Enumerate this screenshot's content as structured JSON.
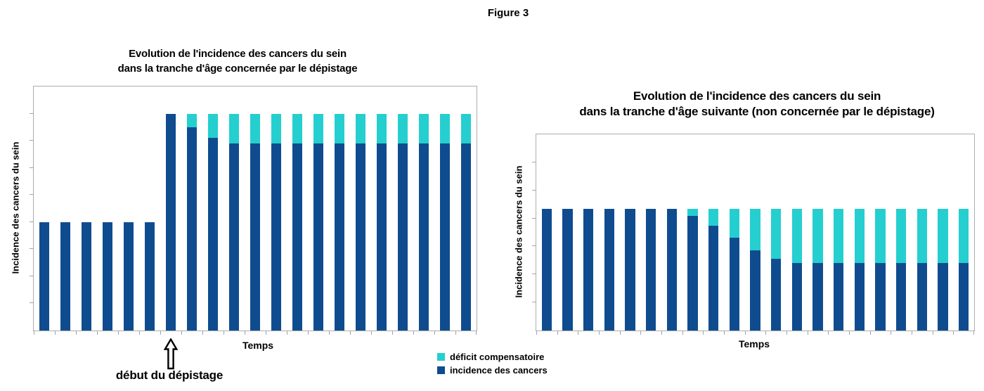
{
  "figure_label": "Figure 3",
  "colors": {
    "incidence": "#0F4C8F",
    "deficit": "#25CFCF",
    "axis": "#adadad"
  },
  "legend": {
    "items": [
      {
        "label": "déficit compensatoire",
        "color": "#25CFCF"
      },
      {
        "label": "incidence des cancers",
        "color": "#0F4C8F"
      }
    ]
  },
  "annotation": {
    "label": "début du dépistage",
    "arrow": "up-block-arrow",
    "at_bar_index": 7
  },
  "chart_data": [
    {
      "type": "bar",
      "stacked": true,
      "title": "Evolution de l'incidence des cancers du sein\ndans la tranche d'âge concernée par le dépistage",
      "xlabel": "Temps",
      "ylabel": "Incidence des cancers du sein",
      "ylim": [
        0,
        9
      ],
      "ytick_interval": 1,
      "x_tick_labels": "hidden",
      "grid": false,
      "legend_position": "shared-bottom-center",
      "categories": [
        1,
        2,
        3,
        4,
        5,
        6,
        7,
        8,
        9,
        10,
        11,
        12,
        13,
        14,
        15,
        16,
        17,
        18,
        19,
        20,
        21
      ],
      "series": [
        {
          "name": "incidence des cancers",
          "color": "#0F4C8F",
          "values": [
            4,
            4,
            4,
            4,
            4,
            4,
            8,
            7.5,
            7.1,
            6.9,
            6.9,
            6.9,
            6.9,
            6.9,
            6.9,
            6.9,
            6.9,
            6.9,
            6.9,
            6.9,
            6.9
          ]
        },
        {
          "name": "déficit compensatoire",
          "color": "#25CFCF",
          "values": [
            0,
            0,
            0,
            0,
            0,
            0,
            0,
            0.5,
            0.9,
            1.1,
            1.1,
            1.1,
            1.1,
            1.1,
            1.1,
            1.1,
            1.1,
            1.1,
            1.1,
            1.1,
            1.1
          ]
        }
      ],
      "annotations": [
        {
          "text": "début du dépistage",
          "at_category": 7,
          "position": "below-x-axis",
          "marker": "up-arrow"
        }
      ]
    },
    {
      "type": "bar",
      "stacked": true,
      "title": "Evolution de l'incidence des cancers du sein\ndans la tranche d'âge suivante (non concernée par le dépistage)",
      "xlabel": "Temps",
      "ylabel": "Incidence des cancers du sein",
      "ylim": [
        0,
        7
      ],
      "ytick_interval": 1,
      "x_tick_labels": "hidden",
      "grid": false,
      "legend_position": "shared-bottom-center",
      "categories": [
        1,
        2,
        3,
        4,
        5,
        6,
        7,
        8,
        9,
        10,
        11,
        12,
        13,
        14,
        15,
        16,
        17,
        18,
        19,
        20,
        21
      ],
      "series": [
        {
          "name": "incidence des cancers",
          "color": "#0F4C8F",
          "values": [
            4.35,
            4.35,
            4.35,
            4.35,
            4.35,
            4.35,
            4.35,
            4.1,
            3.75,
            3.3,
            2.85,
            2.55,
            2.4,
            2.4,
            2.4,
            2.4,
            2.4,
            2.4,
            2.4,
            2.4,
            2.4
          ]
        },
        {
          "name": "déficit compensatoire",
          "color": "#25CFCF",
          "values": [
            0,
            0,
            0,
            0,
            0,
            0,
            0,
            0.25,
            0.6,
            1.05,
            1.5,
            1.8,
            1.95,
            1.95,
            1.95,
            1.95,
            1.95,
            1.95,
            1.95,
            1.95,
            1.95
          ]
        }
      ],
      "annotations": []
    }
  ]
}
